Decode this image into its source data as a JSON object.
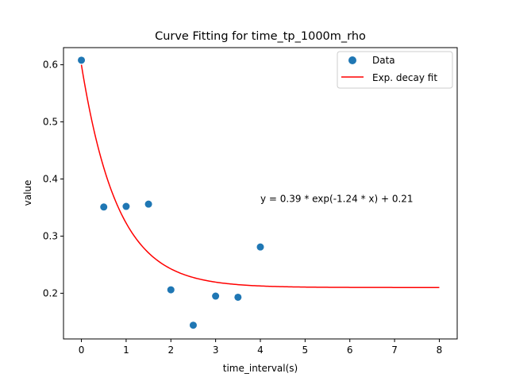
{
  "chart_data": {
    "type": "scatter",
    "title": "Curve Fitting for time_tp_1000m_rho",
    "xlabel": "time_interval(s)",
    "ylabel": "value",
    "xlim": [
      -0.4,
      8.4
    ],
    "ylim": [
      0.12,
      0.63
    ],
    "xticks": [
      0,
      1,
      2,
      3,
      4,
      5,
      6,
      7,
      8
    ],
    "yticks": [
      0.2,
      0.3,
      0.4,
      0.5,
      0.6
    ],
    "ytick_labels": [
      "0.2",
      "0.3",
      "0.4",
      "0.5",
      "0.6"
    ],
    "grid": false,
    "legend_position": "top-right",
    "series": [
      {
        "name": "Data",
        "kind": "scatter",
        "color": "#1f77b4",
        "x": [
          0,
          0.5,
          1.0,
          1.5,
          2.0,
          2.5,
          3.0,
          3.5,
          4.0
        ],
        "y": [
          0.608,
          0.351,
          0.352,
          0.356,
          0.206,
          0.144,
          0.195,
          0.193,
          0.281
        ]
      },
      {
        "name": "Exp. decay fit",
        "kind": "line",
        "color": "#ff0000",
        "model": {
          "a": 0.39,
          "b": 1.24,
          "c": 0.21
        },
        "x_range": [
          0,
          8
        ]
      }
    ],
    "annotation": {
      "text": "y = 0.39 * exp(-1.24 * x) + 0.21",
      "x": 4.0,
      "y": 0.365
    }
  }
}
